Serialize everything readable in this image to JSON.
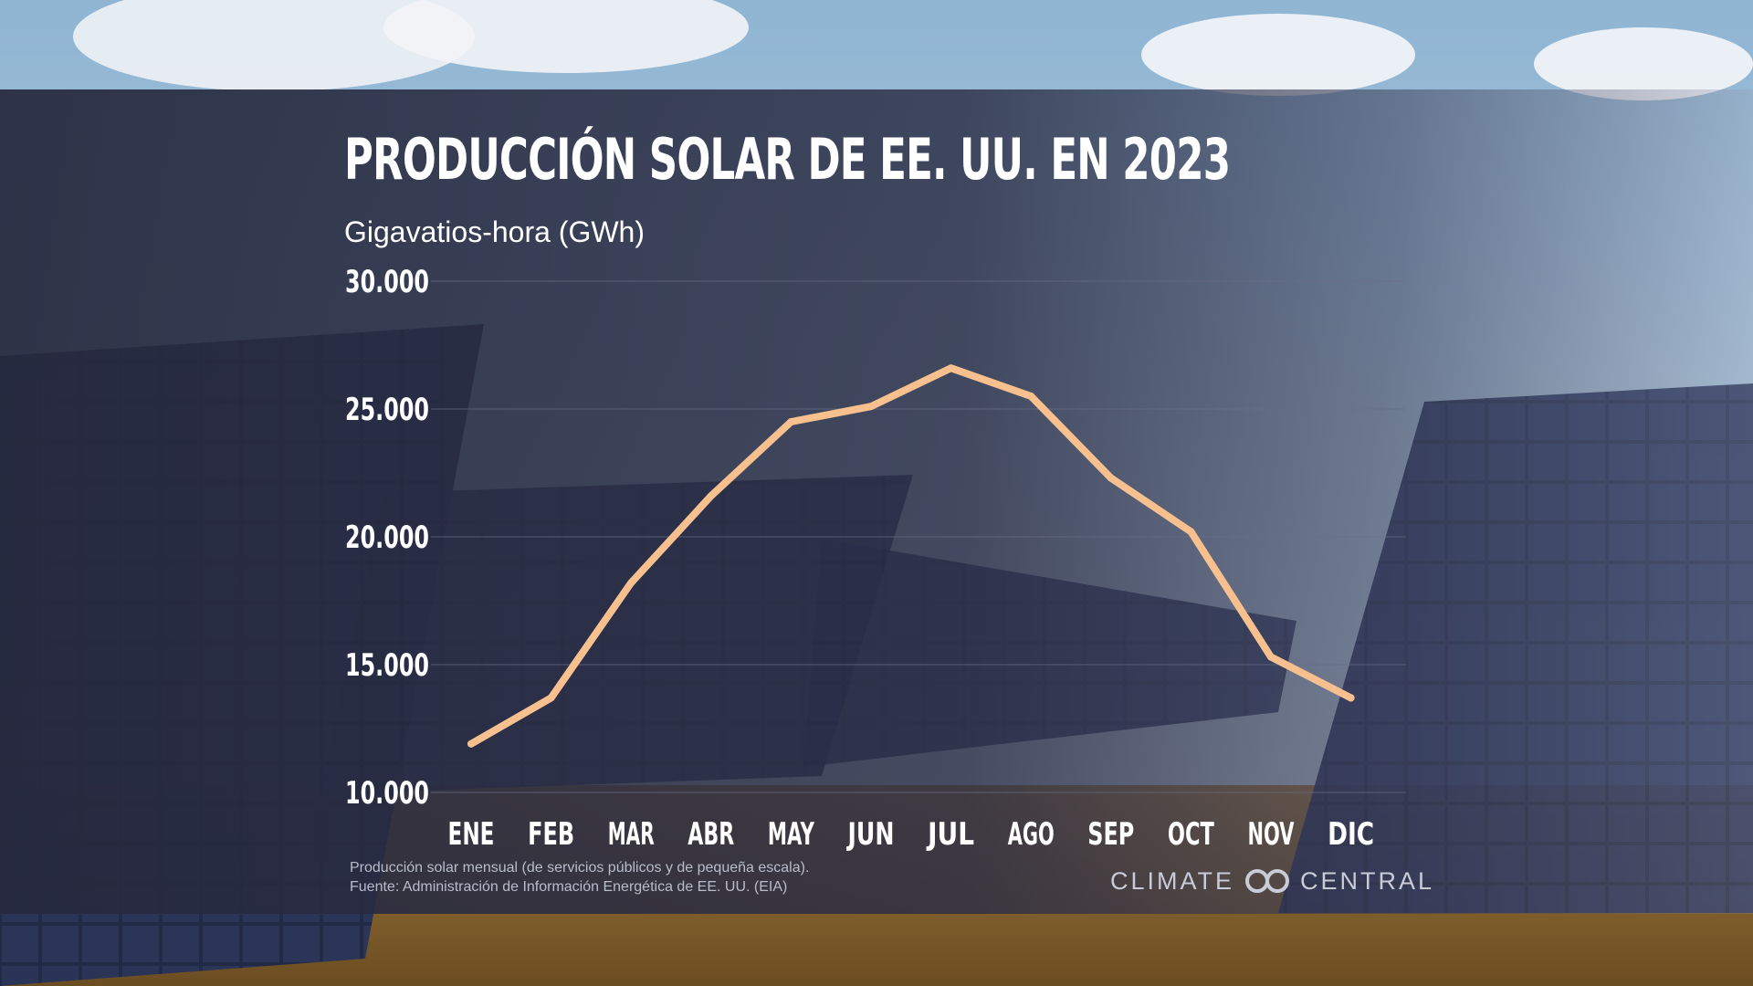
{
  "colors": {
    "line": "#f7c08e",
    "band": "#2a2d44",
    "text": "#ffffff",
    "grid": "#6a6e86",
    "footnote": "#b9bccb"
  },
  "footnote": {
    "line1": "Producción solar mensual (de servicios públicos y de pequeña escala).",
    "line2": "Fuente: Administración de Información Energética de EE. UU. (EIA)"
  },
  "brand": {
    "left": "CLIMATE",
    "right": "CENTRAL",
    "logo_icon": "climate-central-logo-icon"
  },
  "chart_data": {
    "type": "line",
    "title": "PRODUCCIÓN SOLAR DE EE. UU. EN 2023",
    "ylabel": "Gigavatios-hora (GWh)",
    "xlabel": "",
    "categories": [
      "ENE",
      "FEB",
      "MAR",
      "ABR",
      "MAY",
      "JUN",
      "JUL",
      "AGO",
      "SEP",
      "OCT",
      "NOV",
      "DIC"
    ],
    "values": [
      11900,
      13700,
      18200,
      21600,
      24500,
      25100,
      26600,
      25500,
      22300,
      20200,
      15300,
      13700
    ],
    "ylim": [
      10000,
      30000
    ],
    "yticks": [
      10000,
      15000,
      20000,
      25000,
      30000
    ],
    "ytick_labels": [
      "10.000",
      "15.000",
      "20.000",
      "25.000",
      "30.000"
    ],
    "grid": true,
    "legend": "none"
  }
}
